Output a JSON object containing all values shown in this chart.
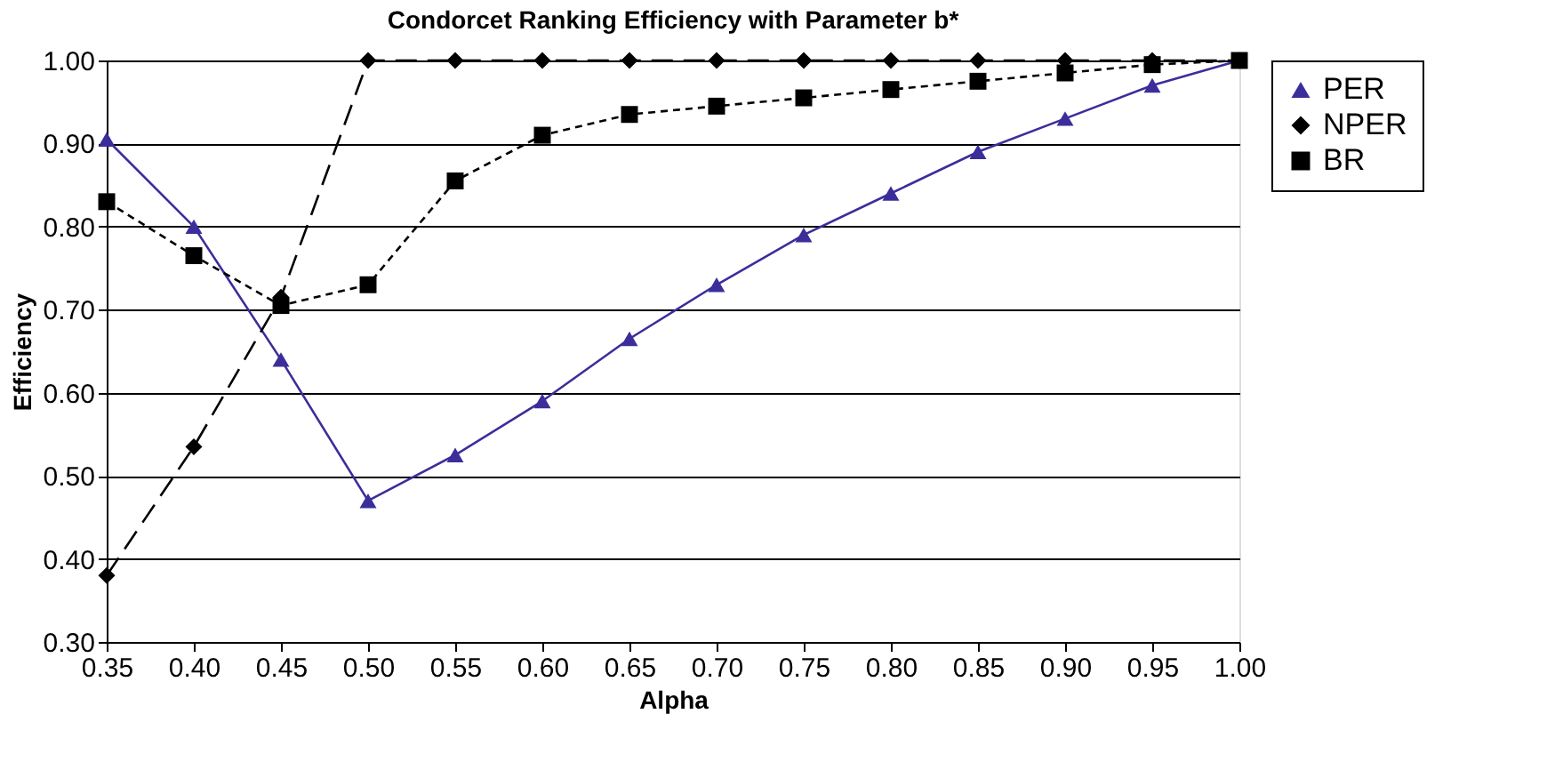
{
  "chart_data": {
    "type": "line",
    "title": "Condorcet Ranking Efficiency with Parameter b*",
    "xlabel": "Alpha",
    "ylabel": "Efficiency",
    "x": [
      0.35,
      0.4,
      0.45,
      0.5,
      0.55,
      0.6,
      0.65,
      0.7,
      0.75,
      0.8,
      0.85,
      0.9,
      0.95,
      1.0
    ],
    "series": [
      {
        "name": "PER",
        "color": "#3b2e9a",
        "marker": "triangle",
        "line_style": "solid",
        "values": [
          0.905,
          0.8,
          0.64,
          0.47,
          0.525,
          0.59,
          0.665,
          0.73,
          0.79,
          0.84,
          0.89,
          0.93,
          0.97,
          1.0
        ]
      },
      {
        "name": "NPER",
        "color": "#000000",
        "marker": "diamond",
        "line_style": "dashed",
        "values": [
          0.38,
          0.535,
          0.715,
          1.0,
          1.0,
          1.0,
          1.0,
          1.0,
          1.0,
          1.0,
          1.0,
          1.0,
          1.0,
          1.0
        ]
      },
      {
        "name": "BR",
        "color": "#000000",
        "marker": "square",
        "line_style": "dotted",
        "values": [
          0.83,
          0.765,
          0.705,
          0.73,
          0.855,
          0.91,
          0.935,
          0.945,
          0.955,
          0.965,
          0.975,
          0.985,
          0.995,
          1.0
        ]
      }
    ],
    "xlim": [
      0.35,
      1.0
    ],
    "xticks": [
      {
        "value": 0.35,
        "label": "0.35"
      },
      {
        "value": 0.4,
        "label": "0.40"
      },
      {
        "value": 0.45,
        "label": "0.45"
      },
      {
        "value": 0.5,
        "label": "0.50"
      },
      {
        "value": 0.55,
        "label": "0.55"
      },
      {
        "value": 0.6,
        "label": "0.60"
      },
      {
        "value": 0.65,
        "label": "0.65"
      },
      {
        "value": 0.7,
        "label": "0.70"
      },
      {
        "value": 0.75,
        "label": "0.75"
      },
      {
        "value": 0.8,
        "label": "0.80"
      },
      {
        "value": 0.85,
        "label": "0.85"
      },
      {
        "value": 0.9,
        "label": "0.90"
      },
      {
        "value": 0.95,
        "label": "0.95"
      },
      {
        "value": 1.0,
        "label": "1.00"
      }
    ],
    "ylim": [
      0.3,
      1.0
    ],
    "yticks": [
      {
        "value": 0.3,
        "label": "0.30"
      },
      {
        "value": 0.4,
        "label": "0.40"
      },
      {
        "value": 0.5,
        "label": "0.50"
      },
      {
        "value": 0.6,
        "label": "0.60"
      },
      {
        "value": 0.7,
        "label": "0.70"
      },
      {
        "value": 0.8,
        "label": "0.80"
      },
      {
        "value": 0.9,
        "label": "0.90"
      },
      {
        "value": 1.0,
        "label": "1.00"
      }
    ],
    "grid": "y",
    "legend": "right"
  }
}
